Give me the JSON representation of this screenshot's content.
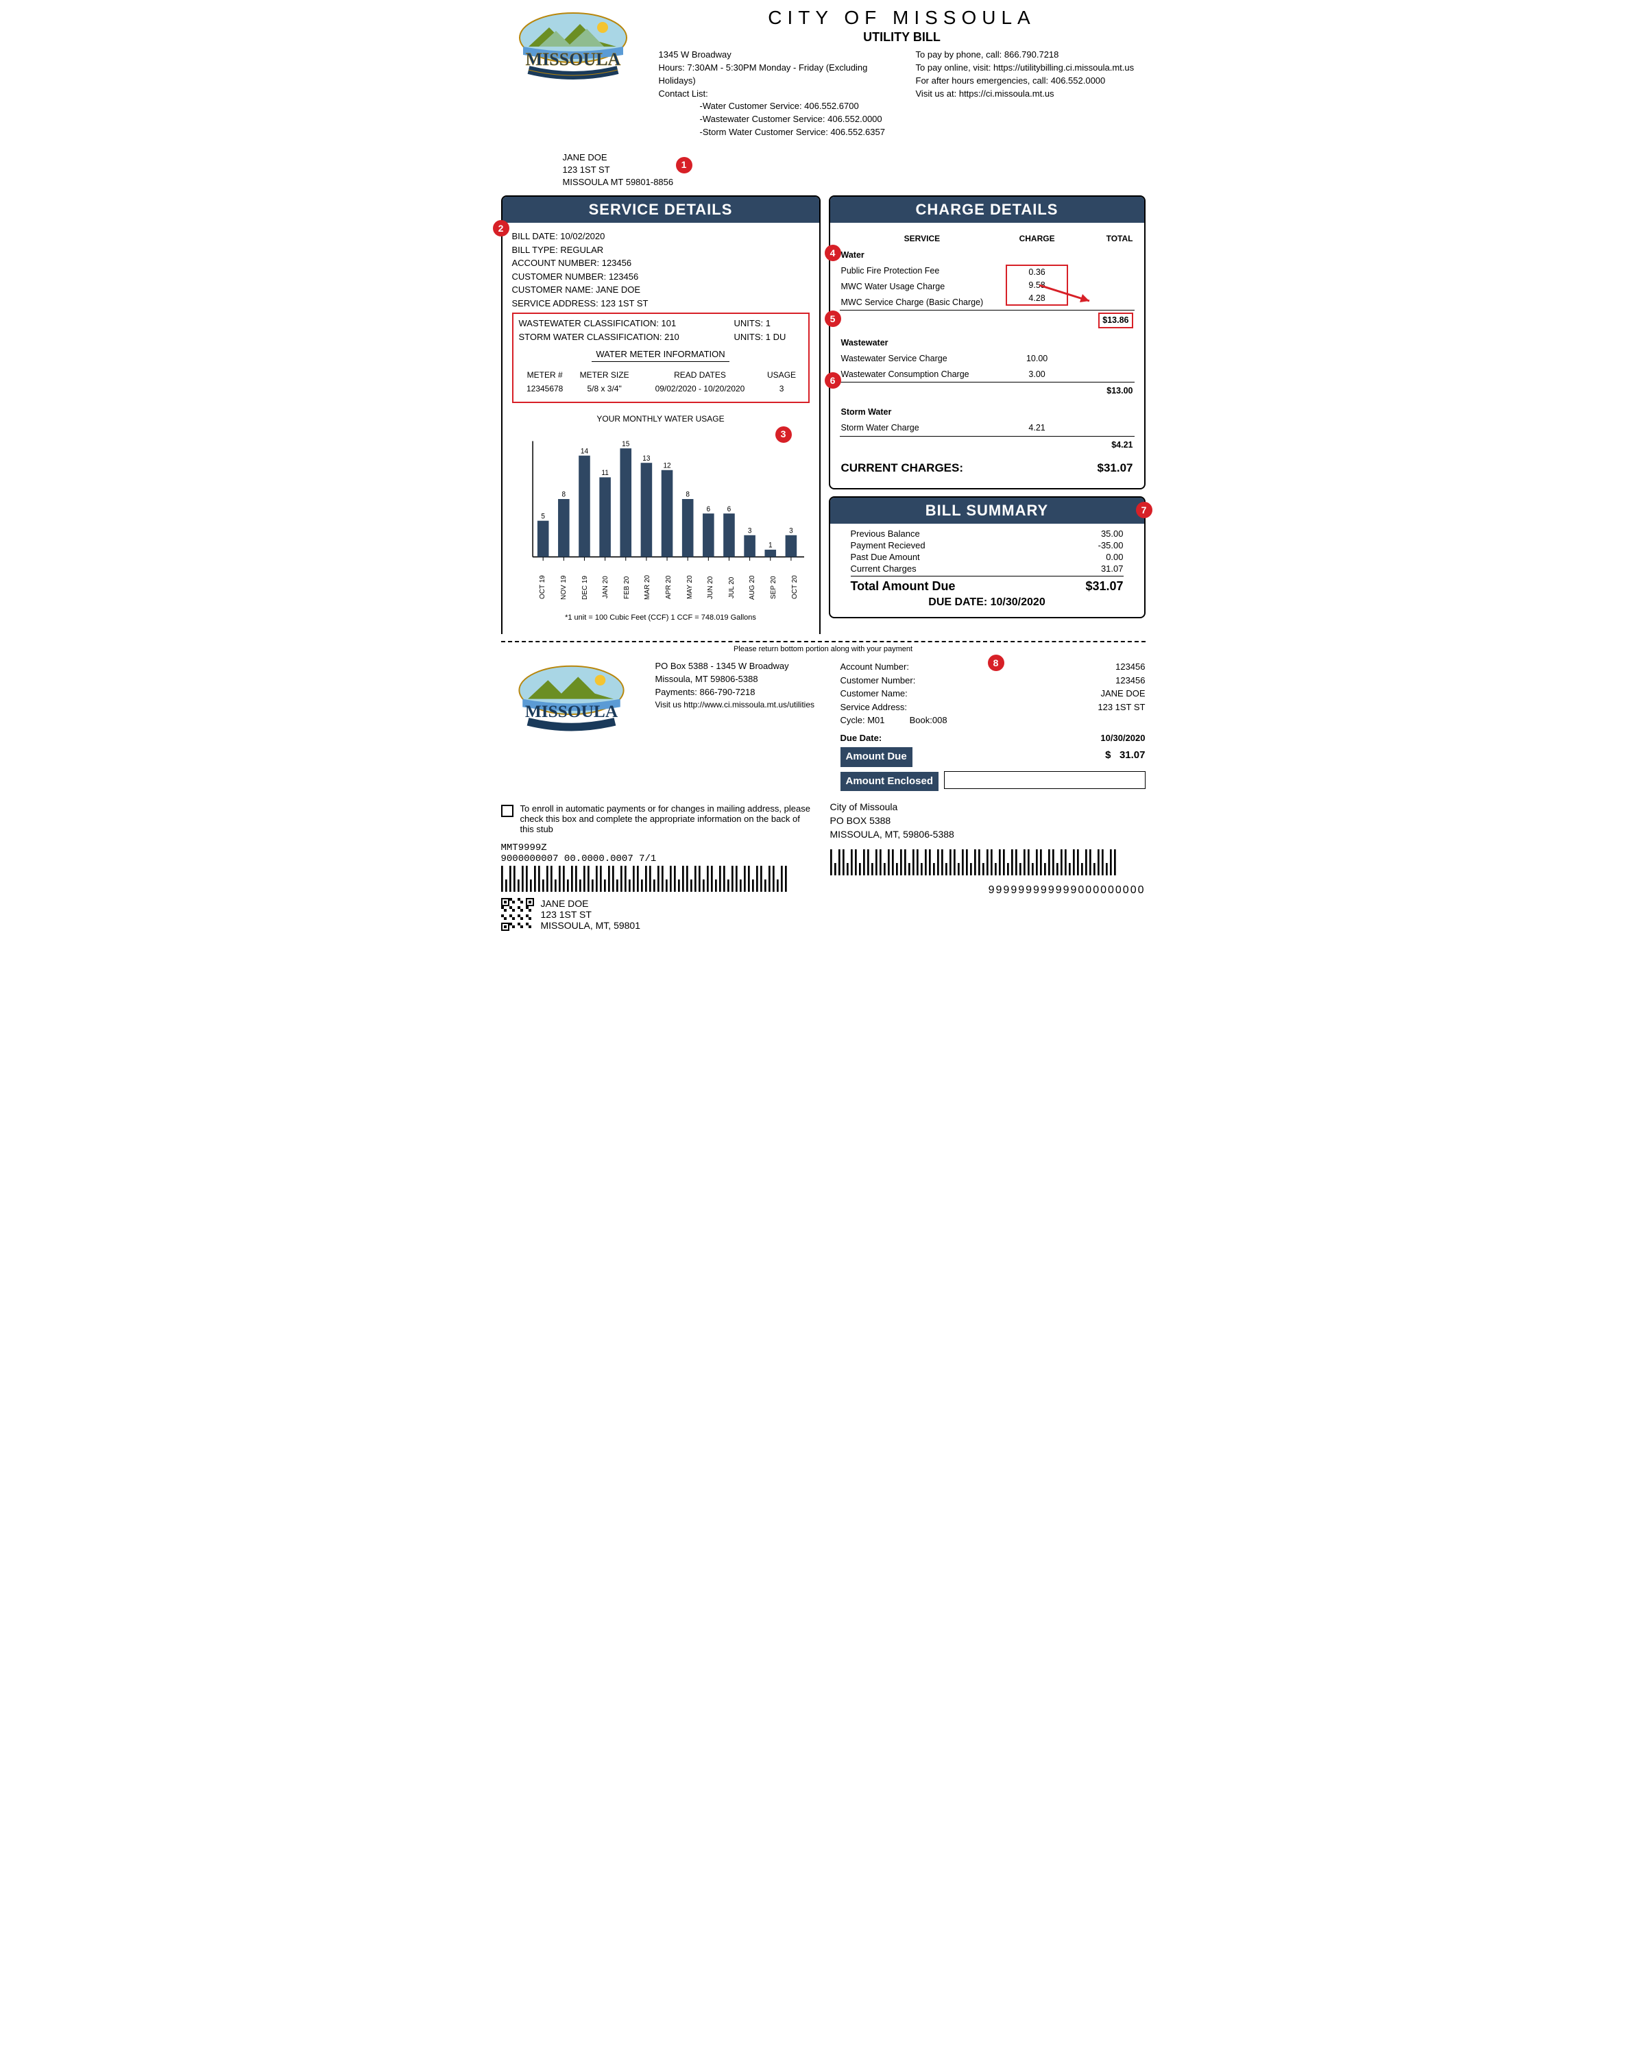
{
  "colors": {
    "header_bg": "#2f4763",
    "callout_red": "#d72027",
    "highlight_border": "#d72027",
    "text": "#000000",
    "bg": "#ffffff",
    "logo_blue": "#2c5f8d",
    "logo_sky": "#a9d6e5",
    "logo_green": "#6b8e23",
    "logo_sun": "#f4c430"
  },
  "header": {
    "city_title": "CITY OF MISSOULA",
    "subtitle": "UTILITY BILL",
    "address": "1345 W Broadway",
    "hours": "Hours: 7:30AM - 5:30PM Monday - Friday (Excluding Holidays)",
    "contact_label": "Contact List:",
    "contacts": [
      "-Water Customer Service: 406.552.6700",
      "-Wastewater Customer Service: 406.552.0000",
      "-Storm Water Customer Service: 406.552.6357"
    ],
    "pay_phone": "To pay by phone, call: 866.790.7218",
    "pay_online": "To pay online, visit: https://utilitybilling.ci.missoula.mt.us",
    "emergency": "For after hours emergencies, call: 406.552.0000",
    "visit": "Visit us at: https://ci.missoula.mt.us"
  },
  "addressee": {
    "name": "JANE DOE",
    "street": "123 1ST ST",
    "citystate": "MISSOULA MT 59801-8856"
  },
  "service_details": {
    "title": "SERVICE DETAILS",
    "lines": {
      "bill_date": "BILL DATE: 10/02/2020",
      "bill_type": "BILL TYPE: REGULAR",
      "acct_no": "ACCOUNT NUMBER: 123456",
      "cust_no": "CUSTOMER NUMBER: 123456",
      "cust_name": "CUSTOMER NAME: JANE DOE",
      "svc_addr": "SERVICE ADDRESS: 123 1ST ST"
    },
    "classifications": {
      "ww_class": "WASTEWATER CLASSIFICATION: 101",
      "ww_units": "UNITS: 1",
      "sw_class": "STORM WATER CLASSIFICATION: 210",
      "sw_units": "UNITS: 1 DU"
    },
    "meter": {
      "title": "WATER METER INFORMATION",
      "headers": {
        "meter_no": "METER #",
        "size": "METER SIZE",
        "read": "READ DATES",
        "usage": "USAGE"
      },
      "row": {
        "meter_no": "12345678",
        "size": "5/8 x 3/4\"",
        "read": "09/02/2020 - 10/20/2020",
        "usage": "3"
      }
    }
  },
  "chart": {
    "title": "YOUR MONTHLY WATER USAGE",
    "type": "bar",
    "categories": [
      "OCT 19",
      "NOV 19",
      "DEC 19",
      "JAN 20",
      "FEB 20",
      "MAR 20",
      "APR 20",
      "MAY 20",
      "JUN 20",
      "JUL 20",
      "AUG 20",
      "SEP 20",
      "OCT 20"
    ],
    "values": [
      5,
      8,
      14,
      11,
      15,
      13,
      12,
      8,
      6,
      6,
      3,
      1,
      3
    ],
    "ylim": [
      0,
      16
    ],
    "bar_color": "#2f4763",
    "axis_color": "#000000",
    "value_label_fontsize": 10,
    "axis_label_fontsize": 10,
    "bar_width_ratio": 0.55,
    "footnote": "*1 unit = 100 Cubic Feet (CCF) 1 CCF = 748.019 Gallons"
  },
  "charges": {
    "title": "CHARGE DETAILS",
    "headers": {
      "service": "SERVICE",
      "charge": "CHARGE",
      "total": "TOTAL"
    },
    "water": {
      "name": "Water",
      "items": [
        {
          "label": "Public Fire Protection Fee",
          "amount": "0.36"
        },
        {
          "label": "MWC Water Usage Charge",
          "amount": "9.58"
        },
        {
          "label": "MWC Service Charge (Basic Charge)",
          "amount": "4.28"
        }
      ],
      "subtotal": "$13.86"
    },
    "wastewater": {
      "name": "Wastewater",
      "items": [
        {
          "label": "Wastewater Service Charge",
          "amount": "10.00"
        },
        {
          "label": "Wastewater Consumption Charge",
          "amount": "3.00"
        }
      ],
      "subtotal": "$13.00"
    },
    "stormwater": {
      "name": "Storm Water",
      "items": [
        {
          "label": "Storm Water Charge",
          "amount": "4.21"
        }
      ],
      "subtotal": "$4.21"
    },
    "current_label": "CURRENT CHARGES:",
    "current_value": "$31.07"
  },
  "summary": {
    "title": "BILL SUMMARY",
    "rows": [
      {
        "label": "Previous Balance",
        "value": "35.00"
      },
      {
        "label": "Payment Recieved",
        "value": "-35.00"
      },
      {
        "label": "Past Due Amount",
        "value": "0.00"
      },
      {
        "label": "Current Charges",
        "value": "31.07"
      }
    ],
    "total_label": "Total Amount Due",
    "total_value": "$31.07",
    "due_date_line": "DUE DATE: 10/30/2020"
  },
  "tear_caption": "Please return bottom portion along with your payment",
  "stub": {
    "addr1": "PO Box 5388 - 1345 W Broadway",
    "addr2": "Missoula, MT 59806-5388",
    "addr3": "Payments: 866-790-7218",
    "addr4": "Visit us http://www.ci.missoula.mt.us/utilities",
    "acct": {
      "account_number_label": "Account Number:",
      "account_number": "123456",
      "customer_number_label": "Customer Number:",
      "customer_number": "123456",
      "customer_name_label": "Customer Name:",
      "customer_name": "JANE DOE",
      "service_address_label": "Service Address:",
      "service_address": "123 1ST ST",
      "cycle_line": "Cycle: M01          Book:008",
      "due_date_label": "Due Date:",
      "due_date": "10/30/2020",
      "amount_due_label": "Amount Due",
      "amount_due": "$   31.07",
      "amount_enclosed_label": "Amount Enclosed"
    },
    "enroll_text": "To enroll in automatic payments or for changes in mailing address, please check this box and complete the appropriate information on the back of this stub",
    "code1": "MMT9999Z",
    "code2": "9000000007 00.0000.0007 7/1",
    "mail_from": {
      "name": "JANE DOE",
      "street": "123 1ST ST",
      "city": "MISSOULA, MT, 59801"
    },
    "remit_to": {
      "line1": "City of Missoula",
      "line2": "PO BOX 5388",
      "line3": "MISSOULA, MT, 59806-5388"
    },
    "ocr_string": "999999999999000000000"
  },
  "callouts": {
    "c1": "1",
    "c2": "2",
    "c3": "3",
    "c4": "4",
    "c5": "5",
    "c6": "6",
    "c7": "7",
    "c8": "8"
  }
}
